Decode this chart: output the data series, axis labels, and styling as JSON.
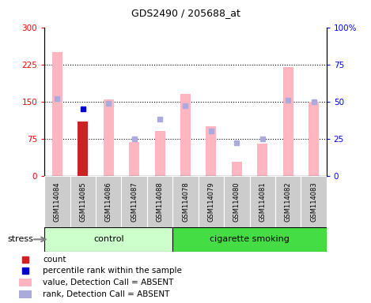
{
  "title": "GDS2490 / 205688_at",
  "samples": [
    "GSM114084",
    "GSM114085",
    "GSM114086",
    "GSM114087",
    "GSM114088",
    "GSM114078",
    "GSM114079",
    "GSM114080",
    "GSM114081",
    "GSM114082",
    "GSM114083"
  ],
  "values_absent": [
    250,
    null,
    155,
    68,
    90,
    165,
    100,
    28,
    65,
    220,
    150
  ],
  "rank_absent": [
    52,
    null,
    49,
    25,
    38,
    47,
    30,
    22,
    25,
    51,
    50
  ],
  "count_present": [
    null,
    110,
    null,
    null,
    null,
    null,
    null,
    null,
    null,
    null,
    null
  ],
  "rank_present": [
    null,
    45,
    null,
    null,
    null,
    null,
    null,
    null,
    null,
    null,
    null
  ],
  "control_count": 5,
  "smoking_count": 6,
  "control_label": "control",
  "smoking_label": "cigarette smoking",
  "stress_label": "stress",
  "ylim_left": [
    0,
    300
  ],
  "ylim_right": [
    0,
    100
  ],
  "yticks_left": [
    0,
    75,
    150,
    225,
    300
  ],
  "yticks_right": [
    0,
    25,
    50,
    75,
    100
  ],
  "ytick_labels_left": [
    "0",
    "75",
    "150",
    "225",
    "300"
  ],
  "ytick_labels_right": [
    "0",
    "25",
    "50",
    "75",
    "100%"
  ],
  "color_absent_bar": "#FFB6C1",
  "color_absent_rank_dot": "#AAAADD",
  "color_present_bar": "#CC2222",
  "color_present_rank_dot": "#0000CC",
  "color_control_bg": "#CCFFCC",
  "color_smoking_bg": "#44DD44",
  "color_sample_bg": "#CCCCCC",
  "legend_items": [
    {
      "color": "#CC2222",
      "label": "count",
      "type": "square"
    },
    {
      "color": "#0000CC",
      "label": "percentile rank within the sample",
      "type": "square"
    },
    {
      "color": "#FFB6C1",
      "label": "value, Detection Call = ABSENT",
      "type": "bar"
    },
    {
      "color": "#AAAADD",
      "label": "rank, Detection Call = ABSENT",
      "type": "bar"
    }
  ]
}
